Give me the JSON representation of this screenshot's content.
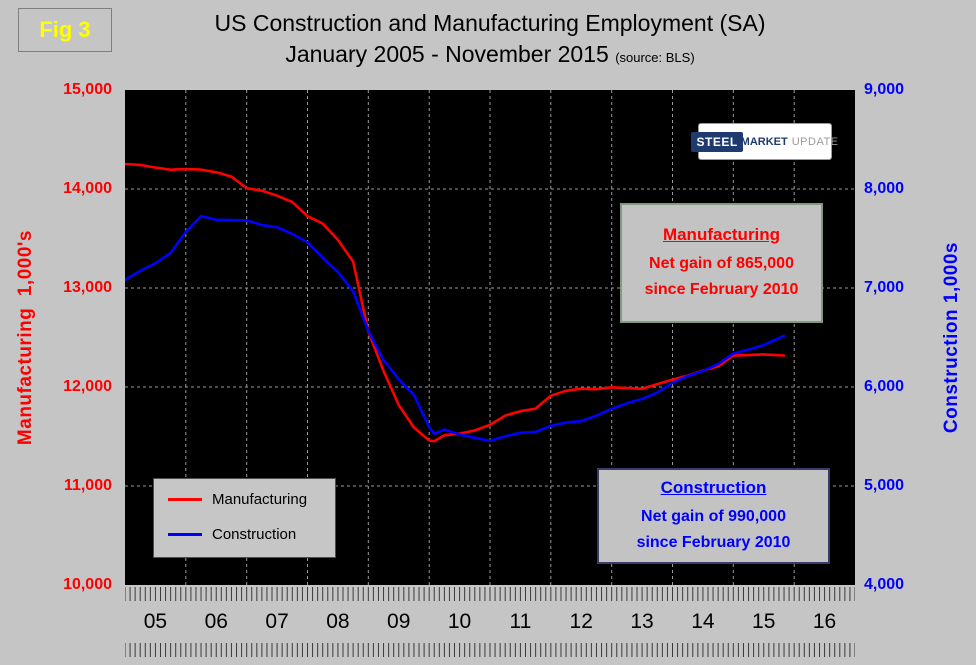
{
  "figure_label": "Fig 3",
  "title_line1": "US Construction and Manufacturing Employment (SA)",
  "title_line2": "January 2005 - November 2015",
  "title_source": "(source: BLS)",
  "logo": {
    "steel": "STEEL",
    "market": "MARKET",
    "update": "UPDATE"
  },
  "legend": {
    "items": [
      {
        "label": "Manufacturing",
        "color": "#ff0000"
      },
      {
        "label": "Construction",
        "color": "#0000ff"
      }
    ]
  },
  "annotations": {
    "manufacturing": {
      "title": "Manufacturing",
      "line1": "Net gain of 865,000",
      "line2": "since February 2010",
      "color": "#ff0000"
    },
    "construction": {
      "title": "Construction",
      "line1": "Net gain of 990,000",
      "line2": "since February 2010",
      "color": "#0000ff"
    }
  },
  "chart_data": {
    "type": "line",
    "title": "US Construction and Manufacturing Employment (SA) January 2005 - November 2015",
    "source": "BLS",
    "x_range": [
      2005,
      2017
    ],
    "x_label_years": [
      "05",
      "06",
      "07",
      "08",
      "09",
      "10",
      "11",
      "12",
      "13",
      "14",
      "15",
      "16"
    ],
    "x_gridlines": [
      2006,
      2007,
      2008,
      2009,
      2010,
      2011,
      2012,
      2013,
      2014,
      2015,
      2016
    ],
    "gridline_values": [
      11000,
      12000,
      13000,
      14000
    ],
    "left_axis": {
      "title": "Manufacturing  1,000's",
      "range": [
        10000,
        15000
      ],
      "ticks": [
        "15,000",
        "14,000",
        "13,000",
        "12,000",
        "11,000",
        "10,000"
      ],
      "color": "#ff0000"
    },
    "right_axis": {
      "title": "Construction 1,000s",
      "range": [
        4000,
        9000
      ],
      "ticks": [
        "9,000",
        "8,000",
        "7,000",
        "6,000",
        "5,000",
        "4,000"
      ],
      "color": "#0000ff"
    },
    "series": [
      {
        "name": "Manufacturing",
        "axis": "left",
        "color": "#ff0000",
        "points": [
          [
            2005.0,
            14253
          ],
          [
            2005.25,
            14243
          ],
          [
            2005.5,
            14216
          ],
          [
            2005.75,
            14195
          ],
          [
            2006.0,
            14201
          ],
          [
            2006.25,
            14196
          ],
          [
            2006.5,
            14169
          ],
          [
            2006.75,
            14125
          ],
          [
            2007.0,
            14008
          ],
          [
            2007.25,
            13983
          ],
          [
            2007.5,
            13932
          ],
          [
            2007.75,
            13868
          ],
          [
            2008.0,
            13725
          ],
          [
            2008.25,
            13651
          ],
          [
            2008.5,
            13486
          ],
          [
            2008.75,
            13268
          ],
          [
            2009.0,
            12561
          ],
          [
            2009.25,
            12163
          ],
          [
            2009.5,
            11817
          ],
          [
            2009.75,
            11590
          ],
          [
            2010.0,
            11460
          ],
          [
            2010.083,
            11453
          ],
          [
            2010.25,
            11512
          ],
          [
            2010.5,
            11529
          ],
          [
            2010.75,
            11561
          ],
          [
            2011.0,
            11618
          ],
          [
            2011.25,
            11711
          ],
          [
            2011.5,
            11756
          ],
          [
            2011.75,
            11782
          ],
          [
            2012.0,
            11912
          ],
          [
            2012.25,
            11962
          ],
          [
            2012.5,
            11983
          ],
          [
            2012.75,
            11978
          ],
          [
            2013.0,
            11997
          ],
          [
            2013.25,
            11989
          ],
          [
            2013.5,
            11982
          ],
          [
            2013.75,
            12029
          ],
          [
            2014.0,
            12075
          ],
          [
            2014.25,
            12115
          ],
          [
            2014.5,
            12166
          ],
          [
            2014.75,
            12208
          ],
          [
            2015.0,
            12317
          ],
          [
            2015.25,
            12322
          ],
          [
            2015.5,
            12329
          ],
          [
            2015.833,
            12318
          ]
        ]
      },
      {
        "name": "Construction",
        "axis": "right",
        "color": "#0000ff",
        "points": [
          [
            2005.0,
            7082
          ],
          [
            2005.25,
            7173
          ],
          [
            2005.5,
            7251
          ],
          [
            2005.75,
            7355
          ],
          [
            2006.0,
            7567
          ],
          [
            2006.25,
            7726
          ],
          [
            2006.5,
            7689
          ],
          [
            2006.75,
            7687
          ],
          [
            2007.0,
            7683
          ],
          [
            2007.25,
            7636
          ],
          [
            2007.5,
            7613
          ],
          [
            2007.75,
            7545
          ],
          [
            2008.0,
            7463
          ],
          [
            2008.25,
            7305
          ],
          [
            2008.5,
            7163
          ],
          [
            2008.75,
            6966
          ],
          [
            2009.0,
            6567
          ],
          [
            2009.25,
            6273
          ],
          [
            2009.5,
            6078
          ],
          [
            2009.75,
            5918
          ],
          [
            2010.0,
            5595
          ],
          [
            2010.083,
            5527
          ],
          [
            2010.25,
            5570
          ],
          [
            2010.5,
            5520
          ],
          [
            2010.75,
            5487
          ],
          [
            2011.0,
            5456
          ],
          [
            2011.25,
            5502
          ],
          [
            2011.5,
            5537
          ],
          [
            2011.75,
            5546
          ],
          [
            2012.0,
            5608
          ],
          [
            2012.25,
            5640
          ],
          [
            2012.5,
            5656
          ],
          [
            2012.75,
            5711
          ],
          [
            2013.0,
            5780
          ],
          [
            2013.25,
            5835
          ],
          [
            2013.5,
            5880
          ],
          [
            2013.75,
            5943
          ],
          [
            2014.0,
            6042
          ],
          [
            2014.25,
            6110
          ],
          [
            2014.5,
            6162
          ],
          [
            2014.75,
            6231
          ],
          [
            2015.0,
            6338
          ],
          [
            2015.25,
            6378
          ],
          [
            2015.5,
            6423
          ],
          [
            2015.833,
            6517
          ]
        ]
      }
    ]
  }
}
